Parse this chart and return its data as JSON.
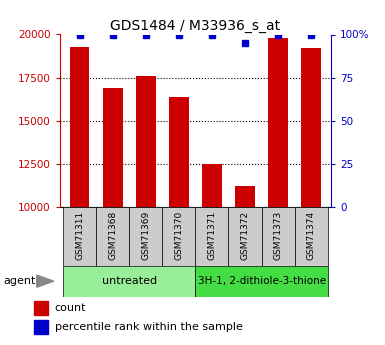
{
  "title": "GDS1484 / M33936_s_at",
  "samples": [
    "GSM71311",
    "GSM71368",
    "GSM71369",
    "GSM71370",
    "GSM71371",
    "GSM71372",
    "GSM71373",
    "GSM71374"
  ],
  "counts": [
    19300,
    16900,
    17600,
    16400,
    12500,
    11200,
    19800,
    19200
  ],
  "percentile_ranks": [
    100,
    100,
    100,
    100,
    100,
    95,
    100,
    100
  ],
  "groups": [
    {
      "label": "untreated",
      "color": "#99ee99",
      "start": 0,
      "end": 3
    },
    {
      "label": "3H-1, 2-dithiole-3-thione",
      "color": "#44dd44",
      "start": 4,
      "end": 7
    }
  ],
  "ylim_left": [
    10000,
    20000
  ],
  "ylim_right": [
    0,
    100
  ],
  "yticks_left": [
    10000,
    12500,
    15000,
    17500,
    20000
  ],
  "yticks_right": [
    0,
    25,
    50,
    75,
    100
  ],
  "bar_color": "#cc0000",
  "dot_color": "#0000cc",
  "left_axis_color": "#cc0000",
  "right_axis_color": "#0000cc",
  "sample_box_color": "#cccccc",
  "agent_label": "agent",
  "legend_count_label": "count",
  "legend_percentile_label": "percentile rank within the sample"
}
